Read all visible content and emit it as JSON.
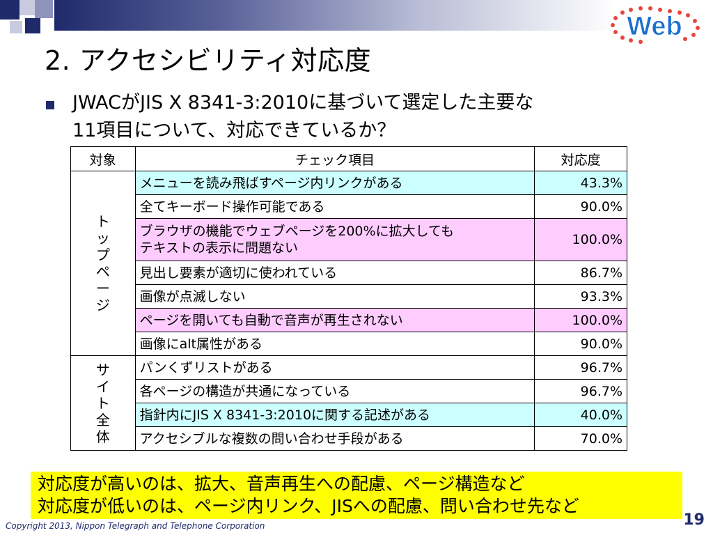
{
  "slide": {
    "title": "2. アクセシビリティ対応度",
    "question_line1": "JWACがJIS X 8341-3:2010に基づいて選定した主要な",
    "question_line2": "11項目について、対応できているか？",
    "logo_text": "Web",
    "page_number": "19",
    "copyright": "Copyright 2013, Nippon Telegraph and Telephone Corporation",
    "note_line1": "対応度が高いのは、拡大、音声再生への配慮、ページ構造など",
    "note_line2": "対応度が低いのは、ページ内リンク、JISへの配慮、問い合わせ先など"
  },
  "table": {
    "headers": [
      "対象",
      "チェック項目",
      "対応度"
    ],
    "groups": [
      {
        "label": "トップページ",
        "rows": [
          {
            "item": "メニューを読み飛ばすページ内リンクがある",
            "rate": "43.3%",
            "highlight": "cyan"
          },
          {
            "item": "全てキーボード操作可能である",
            "rate": "90.0%",
            "highlight": ""
          },
          {
            "item_line1": "ブラウザの機能でウェブページを200%に拡大しても",
            "item_line2": "テキストの表示に問題ない",
            "rate": "100.0%",
            "highlight": "pink"
          },
          {
            "item": "見出し要素が適切に使われている",
            "rate": "86.7%",
            "highlight": ""
          },
          {
            "item": "画像が点滅しない",
            "rate": "93.3%",
            "highlight": ""
          },
          {
            "item": "ページを開いても自動で音声が再生されない",
            "rate": "100.0%",
            "highlight": "pink"
          },
          {
            "item": "画像にalt属性がある",
            "rate": "90.0%",
            "highlight": ""
          }
        ]
      },
      {
        "label": "サイト全体",
        "rows": [
          {
            "item": "パンくずリストがある",
            "rate": "96.7%",
            "highlight": ""
          },
          {
            "item": "各ページの構造が共通になっている",
            "rate": "96.7%",
            "highlight": ""
          },
          {
            "item": "指針内にJIS X 8341-3:2010に関する記述がある",
            "rate": "40.0%",
            "highlight": "cyan"
          },
          {
            "item": "アクセシブルな複数の問い合わせ手段がある",
            "rate": "70.0%",
            "highlight": ""
          }
        ]
      }
    ]
  },
  "colors": {
    "cyan_highlight": "#ccffff",
    "pink_highlight": "#ffccff",
    "note_background": "#ffff00",
    "accent_navy": "#1f2a6b"
  }
}
